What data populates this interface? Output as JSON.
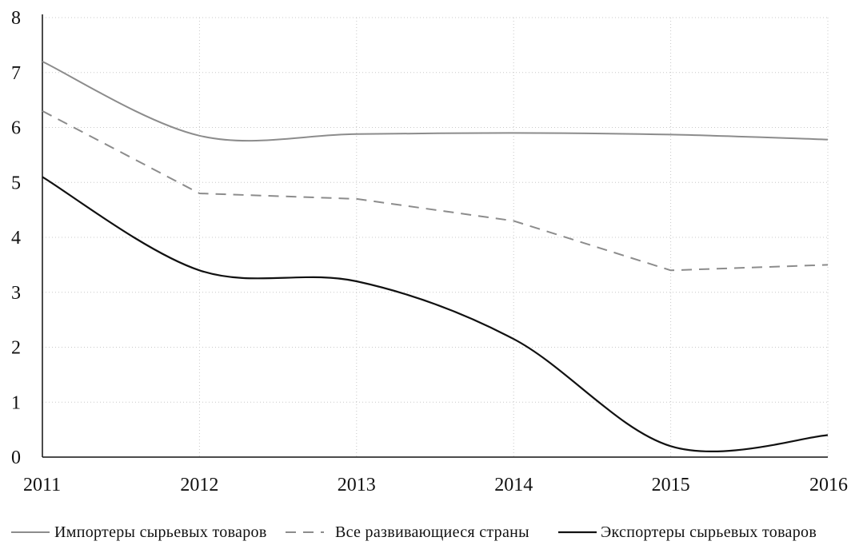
{
  "chart_data": {
    "type": "line",
    "title": "",
    "xlabel": "",
    "ylabel": "",
    "x": [
      2011,
      2012,
      2013,
      2014,
      2015,
      2016
    ],
    "x_tick_labels": [
      "2011",
      "2012",
      "2013",
      "2014",
      "2015",
      "2016"
    ],
    "y_ticks": [
      0,
      1,
      2,
      3,
      4,
      5,
      6,
      7,
      8
    ],
    "y_tick_labels": [
      "0",
      "1",
      "2",
      "3",
      "4",
      "5",
      "6",
      "7",
      "8"
    ],
    "ylim": [
      0,
      8
    ],
    "grid": "dotted vertical and horizontal",
    "legend_position": "bottom",
    "series": [
      {
        "name": "Импортеры сырьевых товаров",
        "values": [
          7.2,
          5.85,
          5.88,
          5.9,
          5.87,
          5.78
        ],
        "color": "#8c8c8c",
        "style": "solid",
        "smooth": true
      },
      {
        "name": "Все развивающиеся страны",
        "values": [
          6.3,
          4.8,
          4.7,
          4.3,
          3.4,
          3.5
        ],
        "color": "#8c8c8c",
        "style": "dashed",
        "smooth": false
      },
      {
        "name": "Экспортеры сырьевых товаров",
        "values": [
          5.1,
          3.4,
          3.2,
          2.15,
          0.2,
          0.4
        ],
        "color": "#111111",
        "style": "solid",
        "smooth": true
      }
    ]
  }
}
